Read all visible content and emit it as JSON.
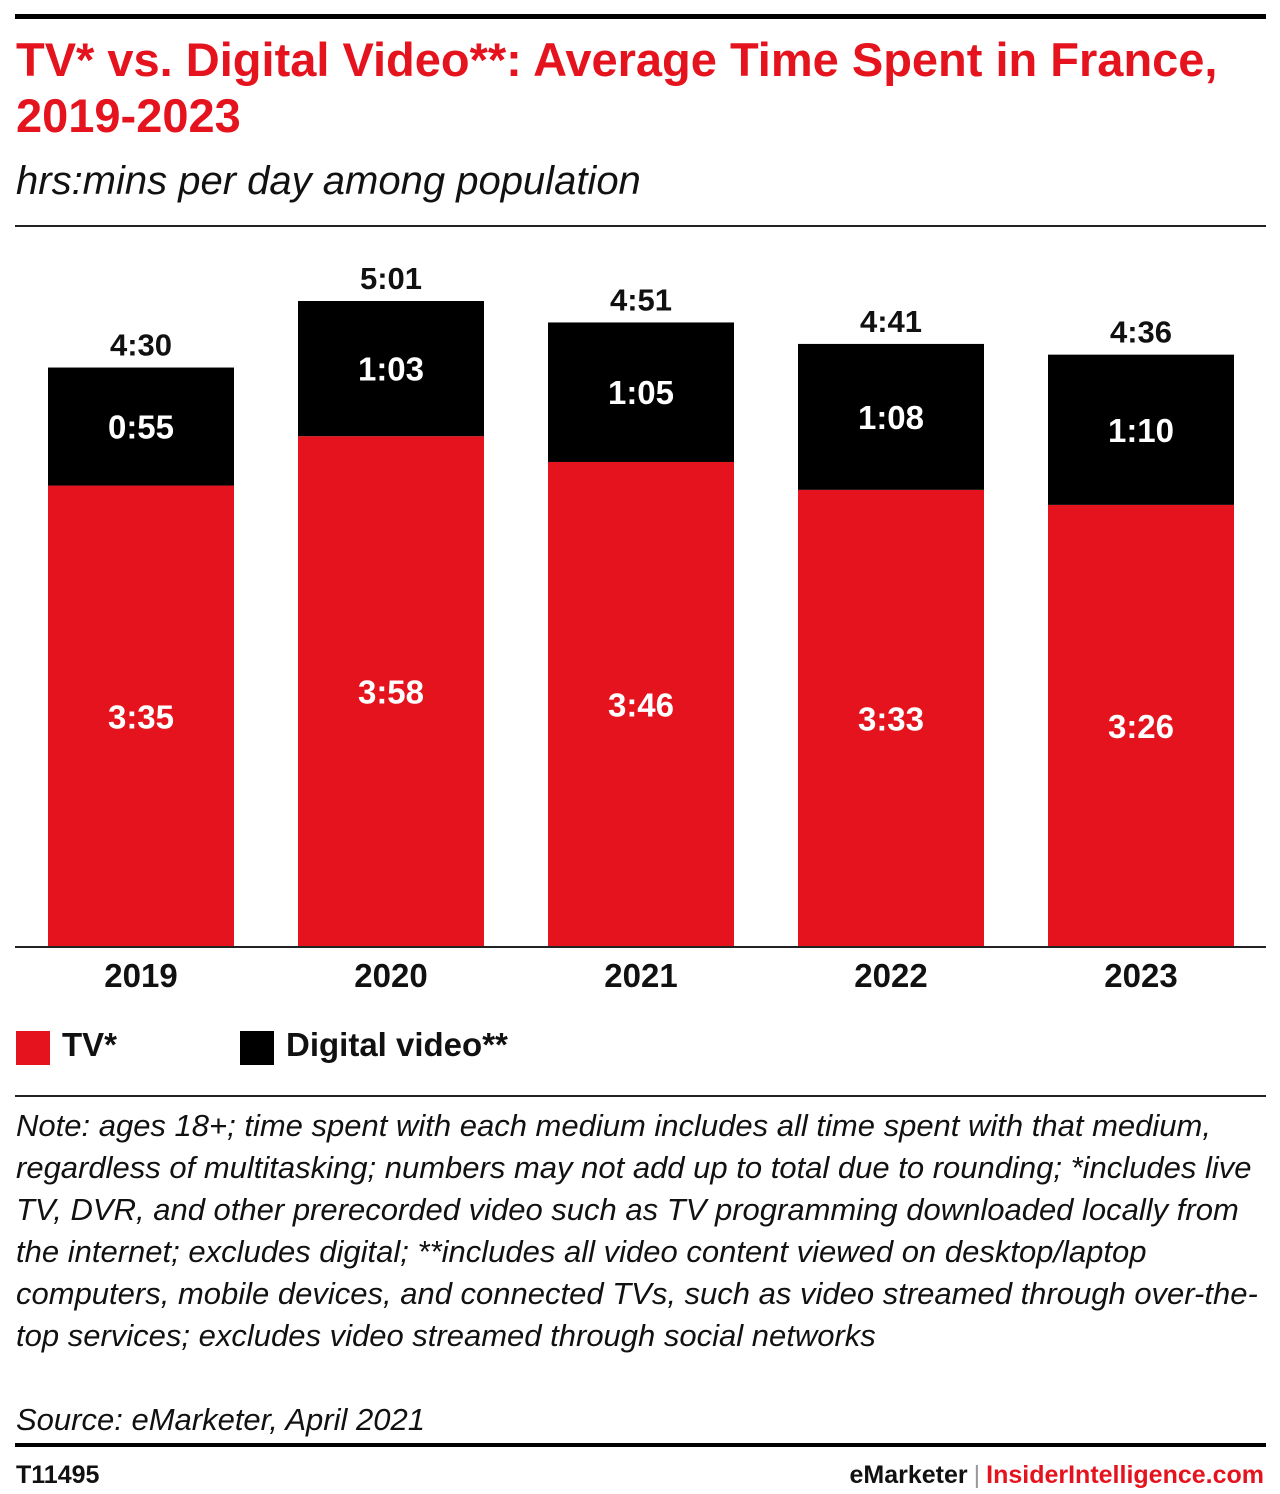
{
  "title": "TV* vs. Digital Video**: Average Time Spent in France, 2019-2023",
  "subtitle": "hrs:mins per day among population",
  "chart_data": {
    "type": "bar",
    "stacked": true,
    "unit": "hrs:mins per day",
    "categories": [
      "2019",
      "2020",
      "2021",
      "2022",
      "2023"
    ],
    "series": [
      {
        "name": "TV*",
        "color": "#e5131d",
        "values_minutes": [
          215,
          238,
          226,
          213,
          206
        ],
        "labels": [
          "3:35",
          "3:58",
          "3:46",
          "3:33",
          "3:26"
        ]
      },
      {
        "name": "Digital video**",
        "color": "#000000",
        "values_minutes": [
          55,
          63,
          65,
          68,
          70
        ],
        "labels": [
          "0:55",
          "1:03",
          "1:05",
          "1:08",
          "1:10"
        ]
      }
    ],
    "totals_minutes": [
      270,
      301,
      291,
      281,
      276
    ],
    "total_labels": [
      "4:30",
      "5:01",
      "4:51",
      "4:41",
      "4:36"
    ],
    "ylim_minutes": [
      0,
      301
    ],
    "grid": false,
    "legend_position": "bottom-left"
  },
  "legend": [
    {
      "label": "TV*",
      "color": "#e5131d"
    },
    {
      "label": "Digital video**",
      "color": "#000000"
    }
  ],
  "note": "Note: ages 18+; time spent with each medium includes all time spent with that medium, regardless of multitasking; numbers may not add up to total due to rounding; *includes live TV, DVR, and other prerecorded video such as TV programming downloaded locally from the internet; excludes digital; **includes all video content viewed on desktop/laptop computers, mobile devices, and connected TVs, such as video streamed through over-the-top services; excludes video streamed through social networks",
  "source": "Source: eMarketer, April 2021",
  "footer": {
    "chart_id": "T11495",
    "brand_primary": "eMarketer",
    "brand_separator": "|",
    "brand_secondary": "InsiderIntelligence.com"
  }
}
